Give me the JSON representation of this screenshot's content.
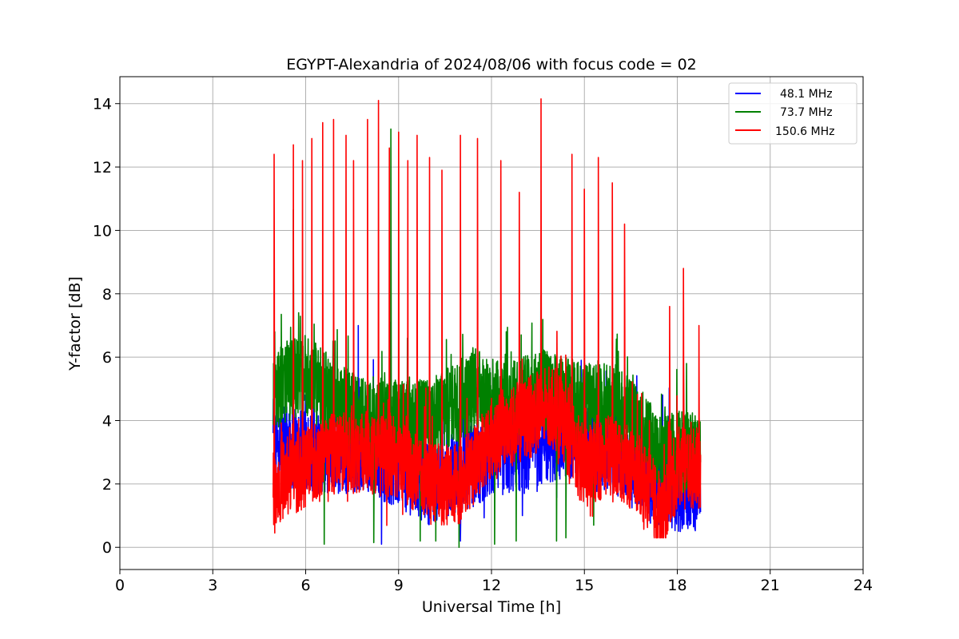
{
  "chart_data": {
    "type": "line",
    "title": "EGYPT-Alexandria of 2024/08/06 with focus code = 02",
    "xlabel": "Universal Time [h]",
    "ylabel": "Y-factor [dB]",
    "xlim": [
      0,
      24
    ],
    "ylim": [
      -0.7,
      14.85
    ],
    "xticks": [
      0,
      3,
      6,
      9,
      12,
      15,
      18,
      21,
      24
    ],
    "yticks": [
      0,
      2,
      4,
      6,
      8,
      10,
      12,
      14
    ],
    "grid": true,
    "legend_position": "top-right",
    "data_range_hours": [
      4.95,
      18.75
    ],
    "series": [
      {
        "name": "48.1 MHz",
        "color": "#0000ff",
        "peaks": [
          [
            5.05,
            4.6
          ],
          [
            5.7,
            3.2
          ],
          [
            6.4,
            2.0
          ],
          [
            6.9,
            3.7
          ],
          [
            7.7,
            7.0
          ],
          [
            8.45,
            0.1
          ],
          [
            9.9,
            2.0
          ],
          [
            11.0,
            0.2
          ],
          [
            11.8,
            1.6
          ],
          [
            13.0,
            1.0
          ],
          [
            14.0,
            4.1
          ],
          [
            14.9,
            5.9
          ],
          [
            16.0,
            4.5
          ],
          [
            16.6,
            5.0
          ],
          [
            17.9,
            2.0
          ],
          [
            18.1,
            0.5
          ],
          [
            18.5,
            1.1
          ],
          [
            18.7,
            2.4
          ]
        ],
        "baseline": [
          [
            4.95,
            3.2
          ],
          [
            6.0,
            3.0
          ],
          [
            8.0,
            3.0
          ],
          [
            10.0,
            2.0
          ],
          [
            12.0,
            2.8
          ],
          [
            13.5,
            3.2
          ],
          [
            14.5,
            3.5
          ],
          [
            15.5,
            3.0
          ],
          [
            16.5,
            2.8
          ],
          [
            17.5,
            2.0
          ],
          [
            18.0,
            1.8
          ],
          [
            18.75,
            1.8
          ]
        ]
      },
      {
        "name": "73.7 MHz",
        "color": "#008000",
        "peaks": [
          [
            5.0,
            6.8
          ],
          [
            5.6,
            10.65
          ],
          [
            6.6,
            0.1
          ],
          [
            8.2,
            0.15
          ],
          [
            8.75,
            13.2
          ],
          [
            9.7,
            0.2
          ],
          [
            10.2,
            0.2
          ],
          [
            10.95,
            0.0
          ],
          [
            11.4,
            6.3
          ],
          [
            12.1,
            0.1
          ],
          [
            12.4,
            5.8
          ],
          [
            12.8,
            0.2
          ],
          [
            14.1,
            0.2
          ],
          [
            14.4,
            0.3
          ],
          [
            15.3,
            0.7
          ],
          [
            16.8,
            3.8
          ],
          [
            17.5,
            0.5
          ],
          [
            18.3,
            5.8
          ]
        ],
        "baseline": [
          [
            4.95,
            5.0
          ],
          [
            6.0,
            5.5
          ],
          [
            7.0,
            4.5
          ],
          [
            8.0,
            4.0
          ],
          [
            10.0,
            4.0
          ],
          [
            11.5,
            5.0
          ],
          [
            12.5,
            4.5
          ],
          [
            13.5,
            5.0
          ],
          [
            15.0,
            4.5
          ],
          [
            16.0,
            4.5
          ],
          [
            17.0,
            3.5
          ],
          [
            17.5,
            2.8
          ],
          [
            18.0,
            3.0
          ],
          [
            18.75,
            3.0
          ]
        ]
      },
      {
        "name": "150.6 MHz",
        "color": "#ff0000",
        "peaks": [
          [
            4.98,
            12.4
          ],
          [
            5.6,
            12.7
          ],
          [
            5.9,
            12.2
          ],
          [
            6.2,
            12.9
          ],
          [
            6.55,
            13.4
          ],
          [
            6.9,
            13.5
          ],
          [
            7.3,
            13.0
          ],
          [
            7.55,
            12.2
          ],
          [
            8.0,
            13.5
          ],
          [
            8.35,
            14.1
          ],
          [
            8.7,
            12.6
          ],
          [
            9.0,
            13.1
          ],
          [
            9.3,
            12.2
          ],
          [
            9.6,
            13.0
          ],
          [
            10.0,
            12.3
          ],
          [
            10.4,
            11.9
          ],
          [
            11.0,
            13.0
          ],
          [
            11.55,
            12.9
          ],
          [
            12.3,
            12.2
          ],
          [
            12.9,
            11.2
          ],
          [
            13.6,
            14.15
          ],
          [
            14.6,
            12.4
          ],
          [
            15.0,
            11.3
          ],
          [
            15.45,
            12.3
          ],
          [
            15.9,
            11.5
          ],
          [
            16.3,
            10.2
          ],
          [
            17.1,
            4.0
          ],
          [
            17.75,
            7.6
          ],
          [
            18.2,
            8.8
          ],
          [
            18.7,
            7.0
          ]
        ],
        "baseline": [
          [
            4.95,
            2.0
          ],
          [
            6.0,
            2.5
          ],
          [
            7.0,
            3.0
          ],
          [
            8.0,
            3.0
          ],
          [
            9.0,
            2.8
          ],
          [
            10.0,
            2.0
          ],
          [
            11.0,
            2.0
          ],
          [
            12.0,
            3.5
          ],
          [
            13.0,
            4.0
          ],
          [
            14.0,
            4.5
          ],
          [
            15.0,
            2.5
          ],
          [
            16.0,
            3.0
          ],
          [
            17.0,
            2.0
          ],
          [
            17.5,
            1.0
          ],
          [
            18.0,
            2.5
          ],
          [
            18.75,
            2.5
          ]
        ]
      }
    ]
  }
}
